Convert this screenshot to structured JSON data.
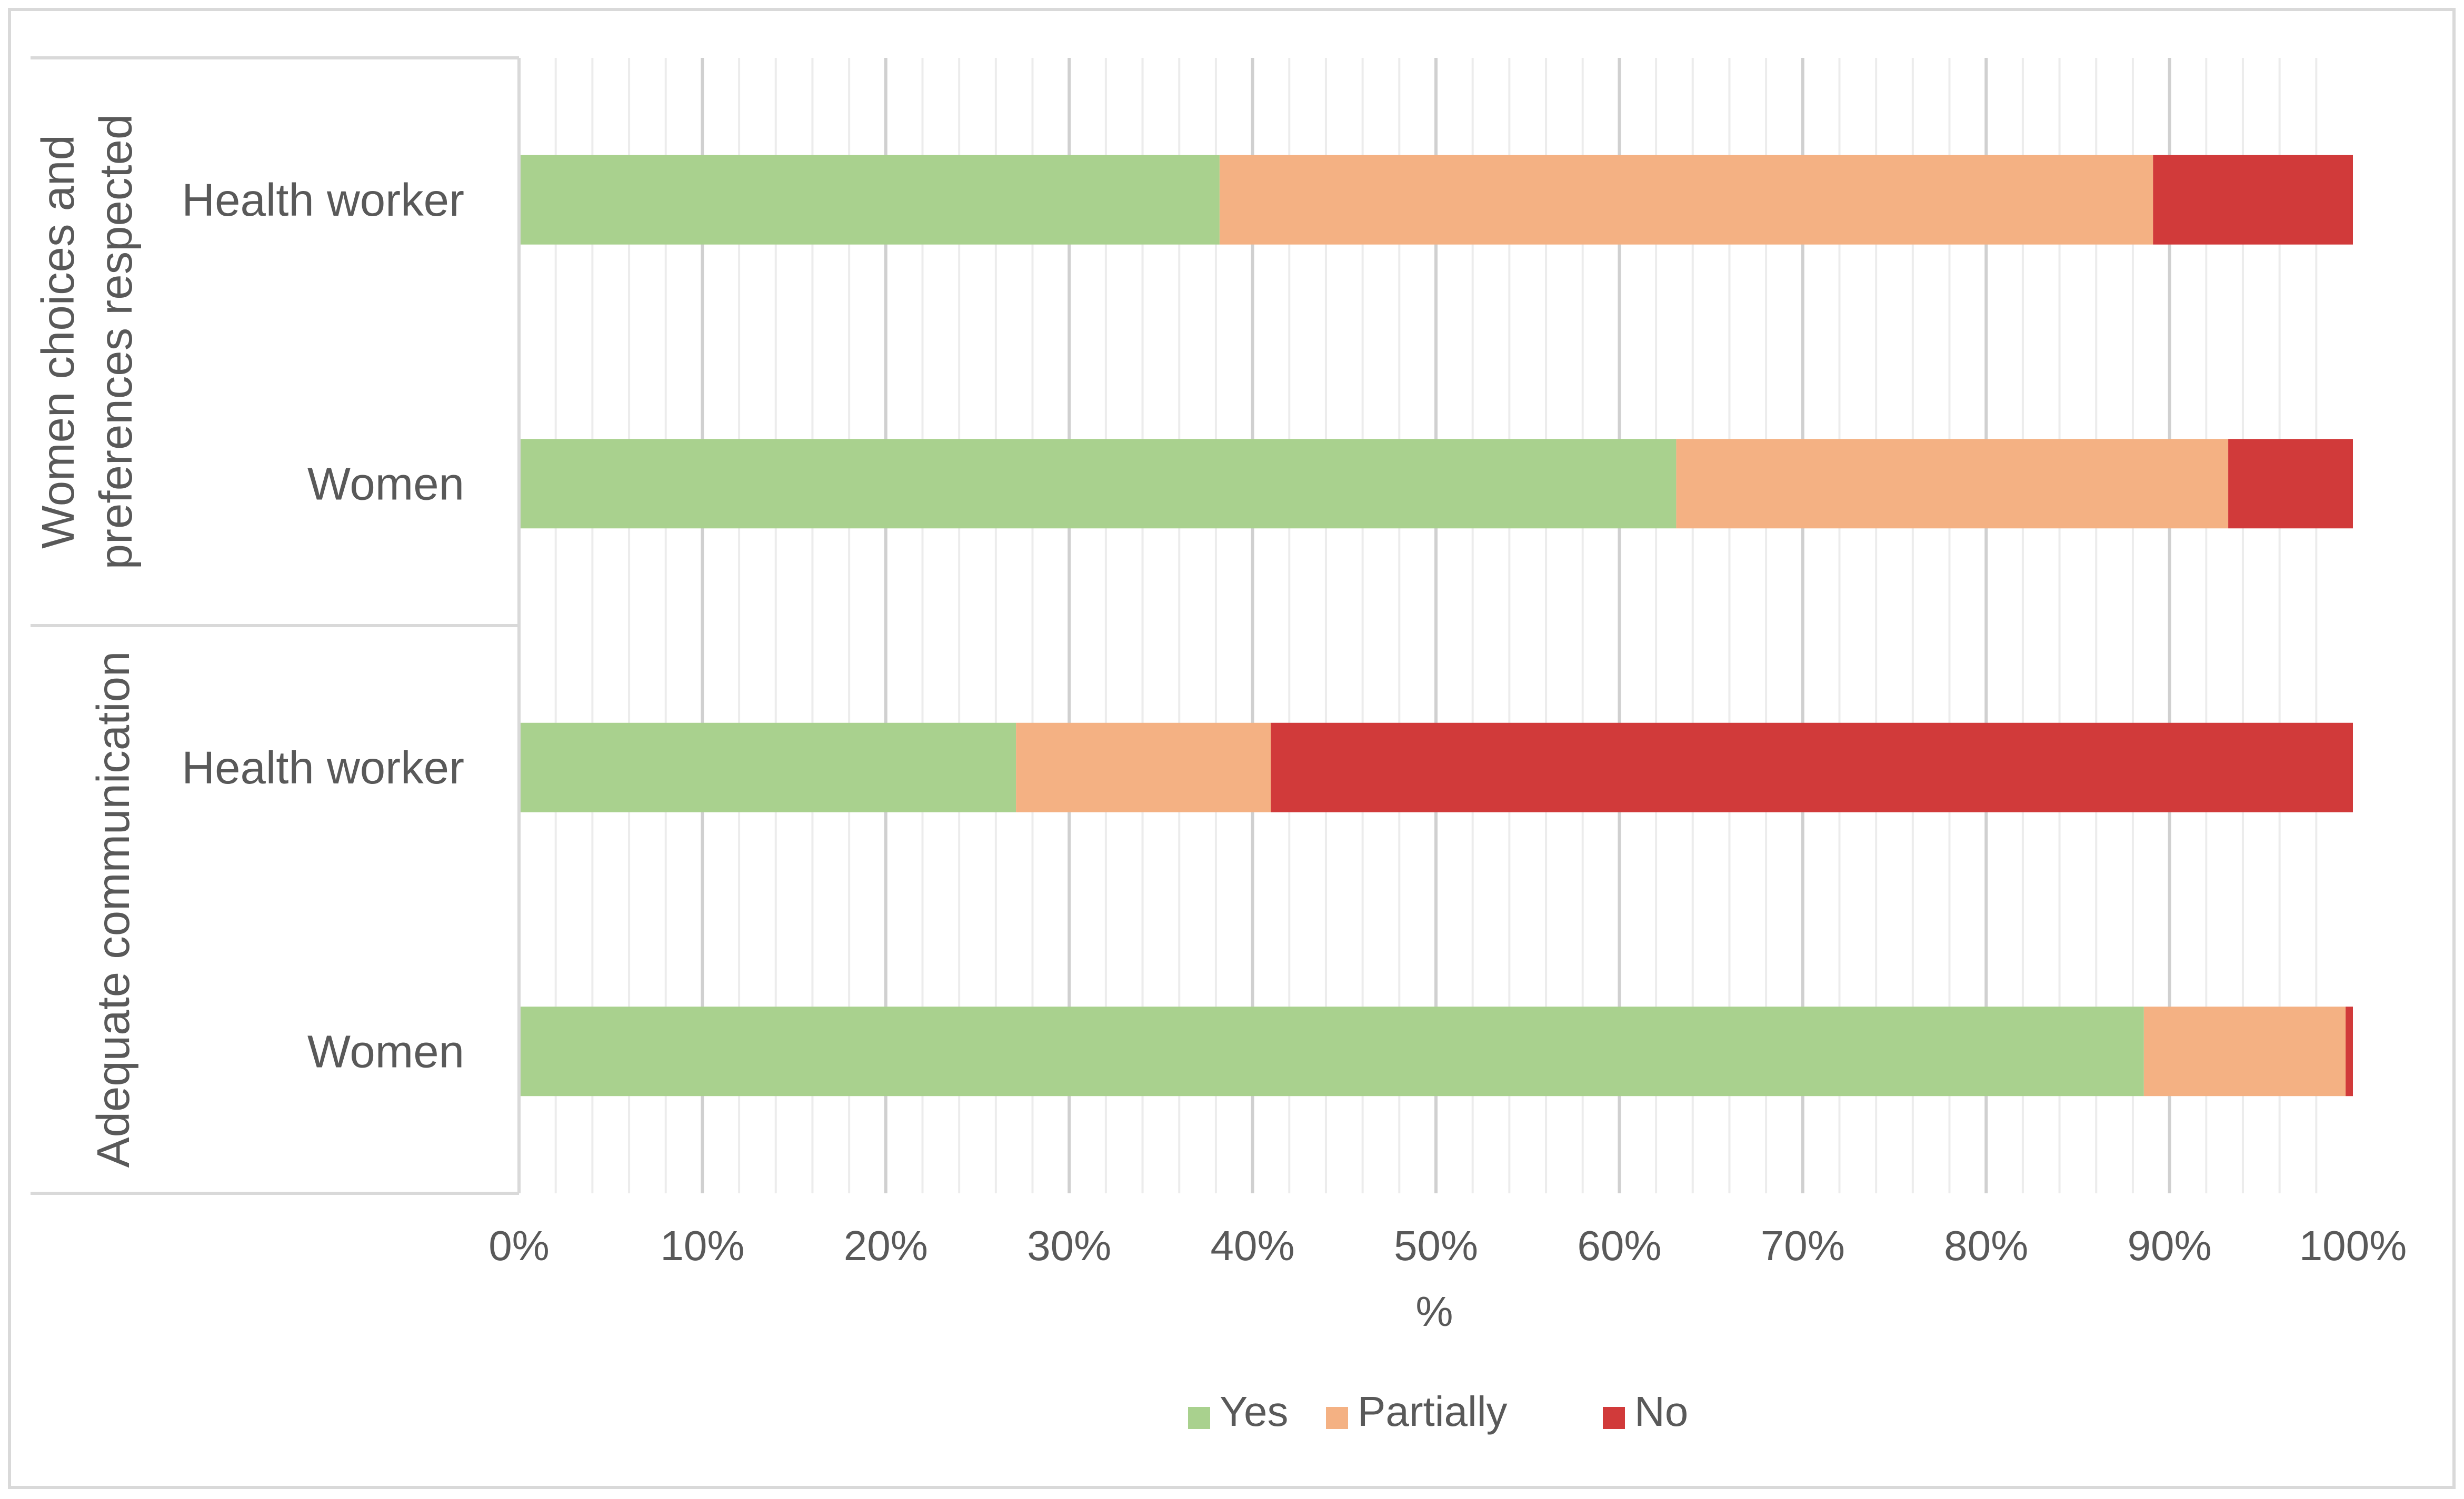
{
  "chart_data": {
    "type": "bar",
    "orientation": "horizontal",
    "stacked": "100%",
    "xlabel": "%",
    "xlim": [
      0,
      100
    ],
    "x_ticks": [
      "0%",
      "10%",
      "20%",
      "30%",
      "40%",
      "50%",
      "60%",
      "70%",
      "80%",
      "90%",
      "100%"
    ],
    "grid": true,
    "legend_position": "bottom",
    "groups": [
      {
        "name": "Women choices and preferences respected",
        "categories": [
          "Health worker",
          "Women"
        ]
      },
      {
        "name": "Adequate communication",
        "categories": [
          "Health worker",
          "Women"
        ]
      }
    ],
    "series": [
      {
        "name": "Yes",
        "color": "#a9d18e",
        "values": [
          38.2,
          63.1,
          27.1,
          88.6
        ]
      },
      {
        "name": "Partially",
        "color": "#f4b183",
        "values": [
          50.9,
          30.1,
          13.9,
          11.0
        ]
      },
      {
        "name": "No",
        "color": "#d13a3a",
        "values": [
          10.9,
          6.8,
          59.0,
          0.4
        ]
      }
    ]
  }
}
